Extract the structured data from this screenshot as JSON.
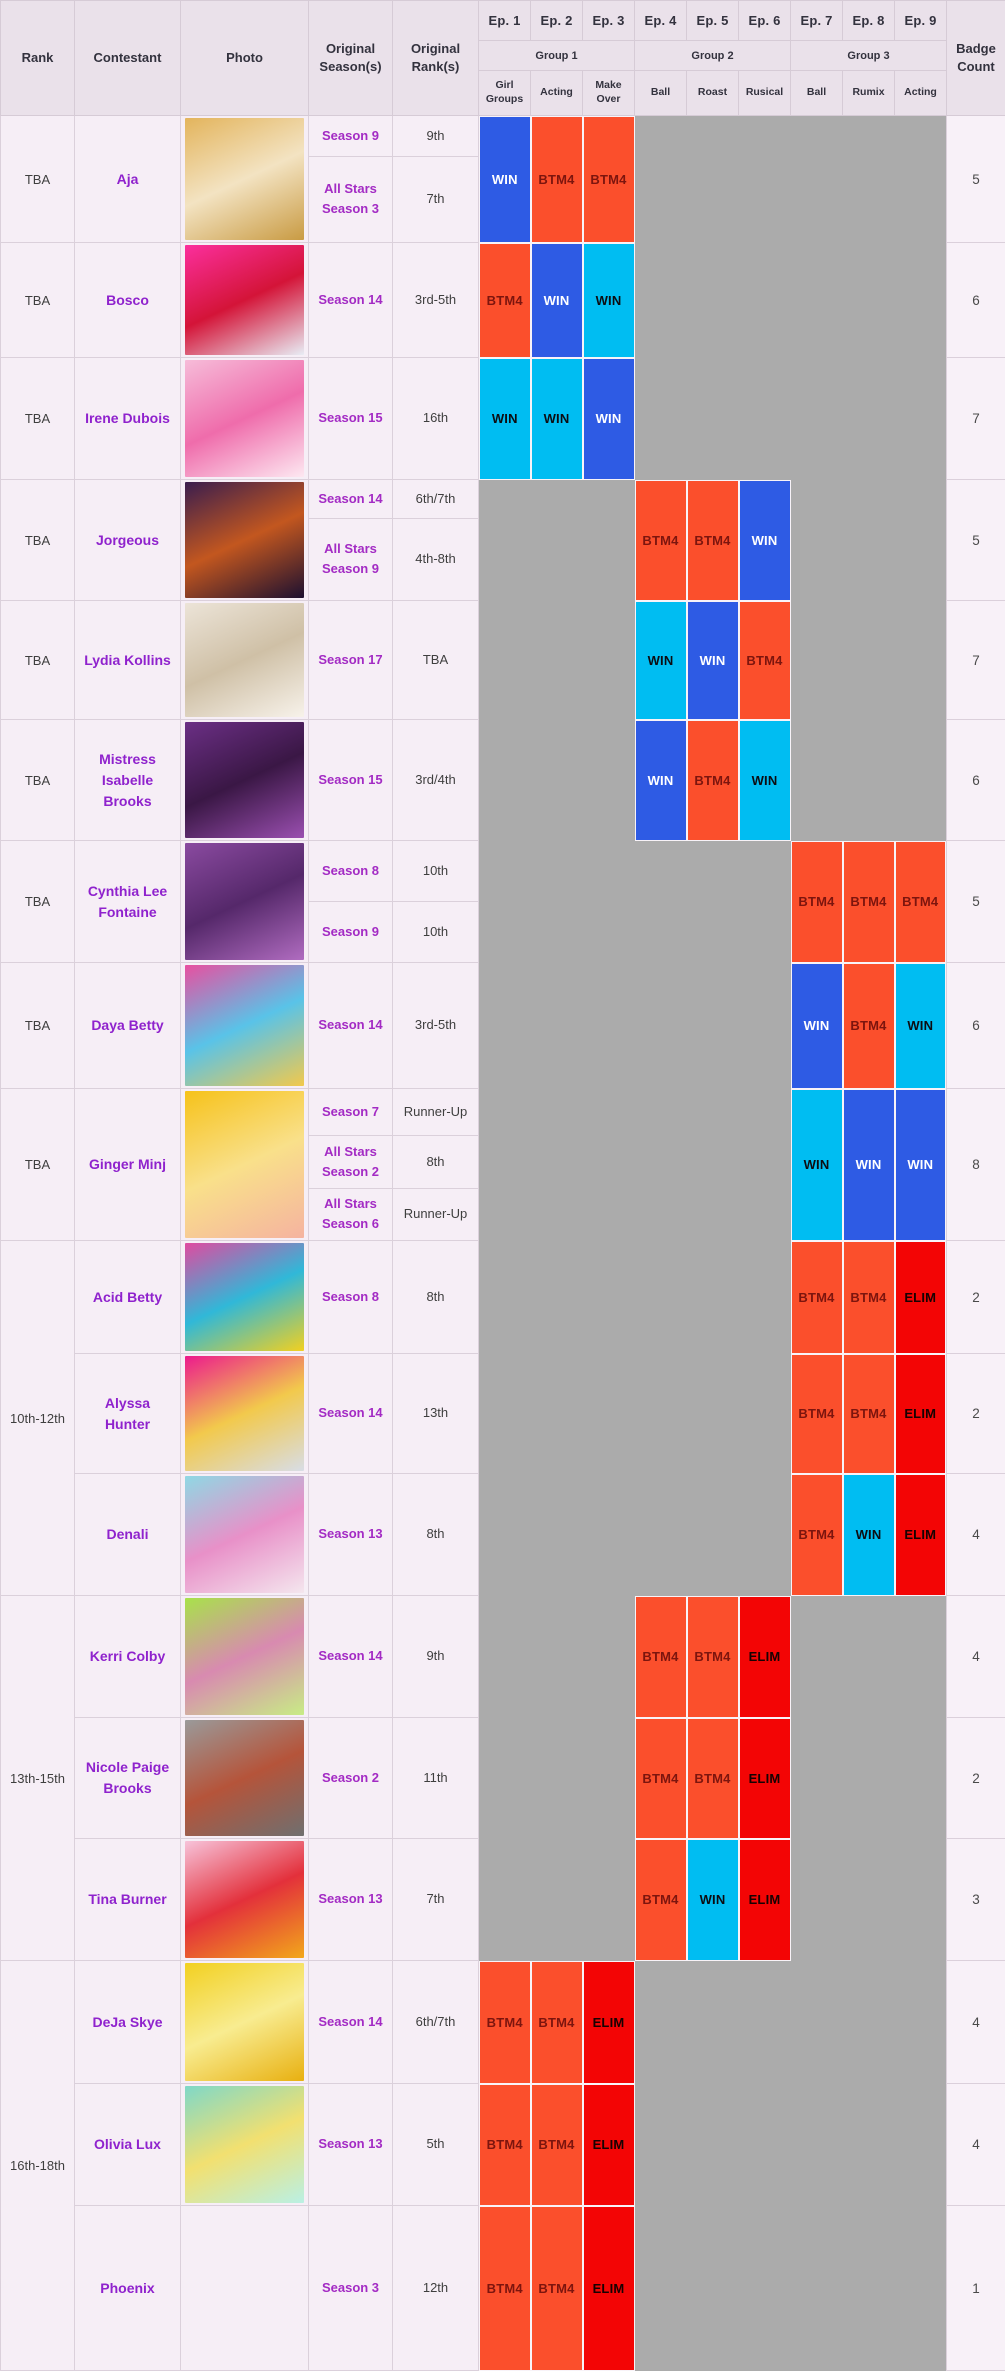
{
  "header": {
    "rank": "Rank",
    "contestant": "Contestant",
    "photo": "Photo",
    "original_seasons": "Original Season(s)",
    "original_ranks": "Original Rank(s)",
    "badge_count": "Badge Count",
    "episodes": [
      "Ep. 1",
      "Ep. 2",
      "Ep. 3",
      "Ep. 4",
      "Ep. 5",
      "Ep. 6",
      "Ep. 7",
      "Ep. 8",
      "Ep. 9"
    ],
    "groups": [
      {
        "label": "Group 1",
        "challenges": [
          "Girl Groups",
          "Acting",
          "Make Over"
        ]
      },
      {
        "label": "Group 2",
        "challenges": [
          "Ball",
          "Roast",
          "Rusical"
        ]
      },
      {
        "label": "Group 3",
        "challenges": [
          "Ball",
          "Rumix",
          "Acting"
        ]
      }
    ]
  },
  "palette": {
    "win_blue": "#2e5be4",
    "win_cyan": "#00bdf2",
    "btm": "#fb4f2c",
    "elim": "#f30505",
    "gray": "#ababab"
  },
  "rows": [
    {
      "rank": "TBA",
      "rank_span": 1,
      "contestant": "Aja",
      "seasons": [
        {
          "season": "Season 9",
          "rank": "9th"
        },
        {
          "season": "All Stars Season 3",
          "rank": "7th"
        }
      ],
      "results": [
        {
          "ep": 1,
          "label": "WIN",
          "style": "win_blue"
        },
        {
          "ep": 2,
          "label": "BTM4",
          "style": "btm"
        },
        {
          "ep": 3,
          "label": "BTM4",
          "style": "btm"
        }
      ],
      "badge_count": "5",
      "photo_colors": [
        "#e3b45c",
        "#f3e3c2",
        "#c99b43"
      ]
    },
    {
      "rank": "TBA",
      "rank_span": 1,
      "contestant": "Bosco",
      "seasons": [
        {
          "season": "Season 14",
          "rank": "3rd-5th"
        }
      ],
      "results": [
        {
          "ep": 1,
          "label": "BTM4",
          "style": "btm"
        },
        {
          "ep": 2,
          "label": "WIN",
          "style": "win_blue"
        },
        {
          "ep": 3,
          "label": "WIN",
          "style": "win_cyan"
        }
      ],
      "badge_count": "6",
      "photo_colors": [
        "#fb2f9d",
        "#d41438",
        "#e8edf5"
      ]
    },
    {
      "rank": "TBA",
      "rank_span": 1,
      "contestant": "Irene Dubois",
      "seasons": [
        {
          "season": "Season 15",
          "rank": "16th"
        }
      ],
      "results": [
        {
          "ep": 1,
          "label": "WIN",
          "style": "win_cyan"
        },
        {
          "ep": 2,
          "label": "WIN",
          "style": "win_cyan"
        },
        {
          "ep": 3,
          "label": "WIN",
          "style": "win_blue"
        }
      ],
      "badge_count": "7",
      "photo_colors": [
        "#f6bcd9",
        "#ef6cab",
        "#fde8f1"
      ]
    },
    {
      "rank": "TBA",
      "rank_span": 1,
      "contestant": "Jorgeous",
      "seasons": [
        {
          "season": "Season 14",
          "rank": "6th/7th"
        },
        {
          "season": "All Stars Season 9",
          "rank": "4th-8th"
        }
      ],
      "results": [
        {
          "ep": 4,
          "label": "BTM4",
          "style": "btm"
        },
        {
          "ep": 5,
          "label": "BTM4",
          "style": "btm"
        },
        {
          "ep": 6,
          "label": "WIN",
          "style": "win_blue"
        }
      ],
      "badge_count": "5",
      "photo_colors": [
        "#3a1d4e",
        "#c3571f",
        "#1d1030"
      ]
    },
    {
      "rank": "TBA",
      "rank_span": 1,
      "contestant": "Lydia Kollins",
      "seasons": [
        {
          "season": "Season 17",
          "rank": "TBA"
        }
      ],
      "results": [
        {
          "ep": 4,
          "label": "WIN",
          "style": "win_cyan"
        },
        {
          "ep": 5,
          "label": "WIN",
          "style": "win_blue"
        },
        {
          "ep": 6,
          "label": "BTM4",
          "style": "btm"
        }
      ],
      "badge_count": "7",
      "photo_colors": [
        "#ece4d8",
        "#cfc0a6",
        "#f7f2ea"
      ]
    },
    {
      "rank": "TBA",
      "rank_span": 1,
      "contestant": "Mistress Isabelle Brooks",
      "seasons": [
        {
          "season": "Season 15",
          "rank": "3rd/4th"
        }
      ],
      "results": [
        {
          "ep": 4,
          "label": "WIN",
          "style": "win_blue"
        },
        {
          "ep": 5,
          "label": "BTM4",
          "style": "btm"
        },
        {
          "ep": 6,
          "label": "WIN",
          "style": "win_cyan"
        }
      ],
      "badge_count": "6",
      "photo_colors": [
        "#6b2f85",
        "#3a1745",
        "#9a4fb0"
      ]
    },
    {
      "rank": "TBA",
      "rank_span": 1,
      "contestant": "Cynthia Lee Fontaine",
      "seasons": [
        {
          "season": "Season 8",
          "rank": "10th"
        },
        {
          "season": "Season 9",
          "rank": "10th"
        }
      ],
      "results": [
        {
          "ep": 7,
          "label": "BTM4",
          "style": "btm"
        },
        {
          "ep": 8,
          "label": "BTM4",
          "style": "btm"
        },
        {
          "ep": 9,
          "label": "BTM4",
          "style": "btm"
        }
      ],
      "badge_count": "5",
      "photo_colors": [
        "#8a4aa0",
        "#55286a",
        "#b06cc0"
      ]
    },
    {
      "rank": "TBA",
      "rank_span": 1,
      "contestant": "Daya Betty",
      "seasons": [
        {
          "season": "Season 14",
          "rank": "3rd-5th"
        }
      ],
      "results": [
        {
          "ep": 7,
          "label": "WIN",
          "style": "win_blue"
        },
        {
          "ep": 8,
          "label": "BTM4",
          "style": "btm"
        },
        {
          "ep": 9,
          "label": "WIN",
          "style": "win_cyan"
        }
      ],
      "badge_count": "6",
      "photo_colors": [
        "#e84fa0",
        "#59c3e8",
        "#f2c94c"
      ]
    },
    {
      "rank": "TBA",
      "rank_span": 1,
      "contestant": "Ginger Minj",
      "seasons": [
        {
          "season": "Season 7",
          "rank": "Runner-Up"
        },
        {
          "season": "All Stars Season 2",
          "rank": "8th"
        },
        {
          "season": "All Stars Season 6",
          "rank": "Runner-Up"
        }
      ],
      "results": [
        {
          "ep": 7,
          "label": "WIN",
          "style": "win_cyan"
        },
        {
          "ep": 8,
          "label": "WIN",
          "style": "win_blue"
        },
        {
          "ep": 9,
          "label": "WIN",
          "style": "win_blue"
        }
      ],
      "badge_count": "8",
      "photo_colors": [
        "#f6c21a",
        "#f9e08a",
        "#f5b3a0"
      ]
    },
    {
      "rank": "10th-12th",
      "rank_span": 3,
      "contestant": "Acid Betty",
      "seasons": [
        {
          "season": "Season 8",
          "rank": "8th"
        }
      ],
      "results": [
        {
          "ep": 7,
          "label": "BTM4",
          "style": "btm"
        },
        {
          "ep": 8,
          "label": "BTM4",
          "style": "btm"
        },
        {
          "ep": 9,
          "label": "ELIM",
          "style": "elim"
        }
      ],
      "badge_count": "2",
      "photo_colors": [
        "#e04aa0",
        "#30b8d8",
        "#f2d020"
      ]
    },
    {
      "rank": null,
      "contestant": "Alyssa Hunter",
      "seasons": [
        {
          "season": "Season 14",
          "rank": "13th"
        }
      ],
      "results": [
        {
          "ep": 7,
          "label": "BTM4",
          "style": "btm"
        },
        {
          "ep": 8,
          "label": "BTM4",
          "style": "btm"
        },
        {
          "ep": 9,
          "label": "ELIM",
          "style": "elim"
        }
      ],
      "badge_count": "2",
      "photo_colors": [
        "#ec1a8d",
        "#f2c94c",
        "#d8dde6"
      ]
    },
    {
      "rank": null,
      "contestant": "Denali",
      "seasons": [
        {
          "season": "Season 13",
          "rank": "8th"
        }
      ],
      "results": [
        {
          "ep": 7,
          "label": "BTM4",
          "style": "btm"
        },
        {
          "ep": 8,
          "label": "WIN",
          "style": "win_cyan"
        },
        {
          "ep": 9,
          "label": "ELIM",
          "style": "elim"
        }
      ],
      "badge_count": "4",
      "photo_colors": [
        "#8fd8e4",
        "#e890c8",
        "#f4e6ee"
      ]
    },
    {
      "rank": "13th-15th",
      "rank_span": 3,
      "contestant": "Kerri Colby",
      "seasons": [
        {
          "season": "Season 14",
          "rank": "9th"
        }
      ],
      "results": [
        {
          "ep": 4,
          "label": "BTM4",
          "style": "btm"
        },
        {
          "ep": 5,
          "label": "BTM4",
          "style": "btm"
        },
        {
          "ep": 6,
          "label": "ELIM",
          "style": "elim"
        }
      ],
      "badge_count": "4",
      "photo_colors": [
        "#a8e24a",
        "#d88ab0",
        "#c8ec85"
      ]
    },
    {
      "rank": null,
      "contestant": "Nicole Paige Brooks",
      "seasons": [
        {
          "season": "Season 2",
          "rank": "11th"
        }
      ],
      "results": [
        {
          "ep": 4,
          "label": "BTM4",
          "style": "btm"
        },
        {
          "ep": 5,
          "label": "BTM4",
          "style": "btm"
        },
        {
          "ep": 6,
          "label": "ELIM",
          "style": "elim"
        }
      ],
      "badge_count": "2",
      "photo_colors": [
        "#9a9a9a",
        "#b5543a",
        "#6f6f6f"
      ]
    },
    {
      "rank": null,
      "contestant": "Tina Burner",
      "seasons": [
        {
          "season": "Season 13",
          "rank": "7th"
        }
      ],
      "results": [
        {
          "ep": 4,
          "label": "BTM4",
          "style": "btm"
        },
        {
          "ep": 5,
          "label": "WIN",
          "style": "win_cyan"
        },
        {
          "ep": 6,
          "label": "ELIM",
          "style": "elim"
        }
      ],
      "badge_count": "3",
      "photo_colors": [
        "#f7c3da",
        "#e3303b",
        "#f2a71b"
      ]
    },
    {
      "rank": "16th-18th",
      "rank_span": 3,
      "contestant": "DeJa Skye",
      "seasons": [
        {
          "season": "Season 14",
          "rank": "6th/7th"
        }
      ],
      "results": [
        {
          "ep": 1,
          "label": "BTM4",
          "style": "btm"
        },
        {
          "ep": 2,
          "label": "BTM4",
          "style": "btm"
        },
        {
          "ep": 3,
          "label": "ELIM",
          "style": "elim"
        }
      ],
      "badge_count": "4",
      "photo_colors": [
        "#f2d020",
        "#f8ec90",
        "#e8b010"
      ]
    },
    {
      "rank": null,
      "contestant": "Olivia Lux",
      "seasons": [
        {
          "season": "Season 13",
          "rank": "5th"
        }
      ],
      "results": [
        {
          "ep": 1,
          "label": "BTM4",
          "style": "btm"
        },
        {
          "ep": 2,
          "label": "BTM4",
          "style": "btm"
        },
        {
          "ep": 3,
          "label": "ELIM",
          "style": "elim"
        }
      ],
      "badge_count": "4",
      "photo_colors": [
        "#7fd8c8",
        "#f2e070",
        "#baf0e4"
      ]
    },
    {
      "rank": null,
      "contestant": "Phoenix",
      "seasons": [
        {
          "season": "Season 3",
          "rank": "12th"
        }
      ],
      "results": [
        {
          "ep": 1,
          "label": "BTM4",
          "style": "btm"
        },
        {
          "ep": 2,
          "label": "BTM4",
          "style": "btm"
        },
        {
          "ep": 3,
          "label": "ELIM",
          "style": "elim"
        }
      ],
      "badge_count": "1",
      "photo_colors": [
        "#dfbf8e",
        "#f0e0c4",
        "#c9a succeeded"
      ]
    }
  ]
}
